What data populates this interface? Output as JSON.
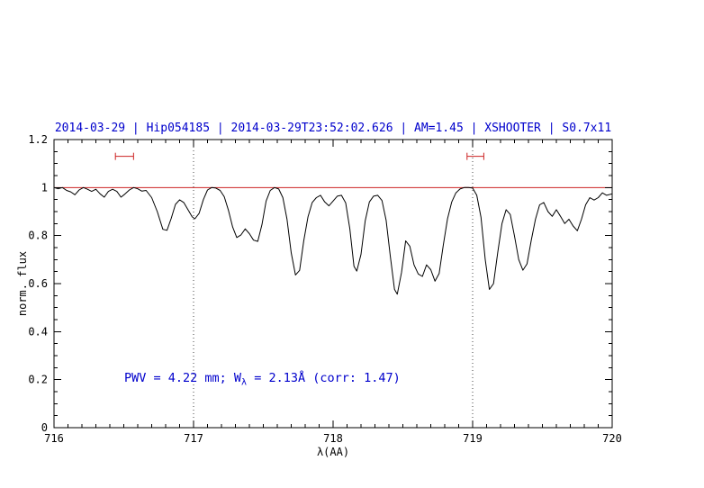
{
  "colors": {
    "title": "#0000cc",
    "annotation": "#0000cc",
    "spectrum": "#000000",
    "continuum": "#cc2222",
    "range_marker": "#cc2222",
    "frame": "#000000",
    "vline": "#444444"
  },
  "annotation": {
    "part1": "PWV = 4.22 mm; W",
    "sub": "λ",
    "part2": " = 2.13Å (corr: 1.47)"
  },
  "chart_data": {
    "type": "line",
    "title": "2014-03-29 | Hip054185 | 2014-03-29T23:52:02.626 | AM=1.45 | XSHOOTER | S0.7x11",
    "xlabel": "λ(AA)",
    "ylabel": "norm. flux",
    "xlim": [
      716,
      720
    ],
    "ylim": [
      0,
      1.2
    ],
    "xtick_values": [
      716,
      717,
      718,
      719,
      720
    ],
    "xtick_labels": [
      "716",
      "717",
      "718",
      "719",
      "720"
    ],
    "ytick_values": [
      0,
      0.2,
      0.4,
      0.6,
      0.8,
      1,
      1.2
    ],
    "ytick_labels": [
      "0",
      "0.2",
      "0.4",
      "0.6",
      "0.8",
      "1",
      "1.2"
    ],
    "x_minor_step": 0.1,
    "y_minor_step": 0.05,
    "grid": false,
    "continuum_y": 1.0,
    "vlines": [
      717,
      719
    ],
    "range_markers": [
      {
        "x1": 716.44,
        "x2": 716.57,
        "y": 1.13
      },
      {
        "x1": 718.96,
        "x2": 719.08,
        "y": 1.13
      }
    ],
    "legend": null,
    "series": [
      {
        "name": "spectrum",
        "points": [
          [
            716.0,
            1.0
          ],
          [
            716.03,
            0.995
          ],
          [
            716.06,
            1.0
          ],
          [
            716.09,
            0.988
          ],
          [
            716.12,
            0.982
          ],
          [
            716.15,
            0.97
          ],
          [
            716.18,
            0.99
          ],
          [
            716.21,
            1.0
          ],
          [
            716.24,
            0.993
          ],
          [
            716.27,
            0.984
          ],
          [
            716.3,
            0.993
          ],
          [
            716.33,
            0.974
          ],
          [
            716.36,
            0.96
          ],
          [
            716.39,
            0.984
          ],
          [
            716.42,
            0.993
          ],
          [
            716.45,
            0.984
          ],
          [
            716.48,
            0.96
          ],
          [
            716.51,
            0.974
          ],
          [
            716.54,
            0.99
          ],
          [
            716.57,
            1.0
          ],
          [
            716.6,
            0.995
          ],
          [
            716.63,
            0.985
          ],
          [
            716.66,
            0.988
          ],
          [
            716.7,
            0.958
          ],
          [
            716.74,
            0.9
          ],
          [
            716.78,
            0.826
          ],
          [
            716.81,
            0.822
          ],
          [
            716.84,
            0.872
          ],
          [
            716.87,
            0.93
          ],
          [
            716.9,
            0.949
          ],
          [
            716.93,
            0.938
          ],
          [
            716.96,
            0.908
          ],
          [
            716.99,
            0.878
          ],
          [
            717.01,
            0.87
          ],
          [
            717.04,
            0.893
          ],
          [
            717.07,
            0.95
          ],
          [
            717.1,
            0.99
          ],
          [
            717.13,
            1.0
          ],
          [
            717.16,
            0.998
          ],
          [
            717.19,
            0.988
          ],
          [
            717.22,
            0.962
          ],
          [
            717.25,
            0.905
          ],
          [
            717.28,
            0.836
          ],
          [
            717.31,
            0.792
          ],
          [
            717.34,
            0.803
          ],
          [
            717.37,
            0.828
          ],
          [
            717.4,
            0.808
          ],
          [
            717.43,
            0.781
          ],
          [
            717.46,
            0.776
          ],
          [
            717.49,
            0.846
          ],
          [
            717.52,
            0.944
          ],
          [
            717.55,
            0.988
          ],
          [
            717.58,
            1.0
          ],
          [
            717.61,
            0.994
          ],
          [
            717.64,
            0.958
          ],
          [
            717.67,
            0.868
          ],
          [
            717.7,
            0.728
          ],
          [
            717.73,
            0.636
          ],
          [
            717.76,
            0.655
          ],
          [
            717.79,
            0.778
          ],
          [
            717.82,
            0.878
          ],
          [
            717.85,
            0.938
          ],
          [
            717.88,
            0.958
          ],
          [
            717.91,
            0.968
          ],
          [
            717.94,
            0.94
          ],
          [
            717.97,
            0.924
          ],
          [
            718.0,
            0.944
          ],
          [
            718.03,
            0.964
          ],
          [
            718.06,
            0.968
          ],
          [
            718.09,
            0.936
          ],
          [
            718.12,
            0.828
          ],
          [
            718.15,
            0.672
          ],
          [
            718.17,
            0.652
          ],
          [
            718.2,
            0.722
          ],
          [
            718.23,
            0.862
          ],
          [
            718.26,
            0.94
          ],
          [
            718.29,
            0.964
          ],
          [
            718.32,
            0.968
          ],
          [
            718.35,
            0.946
          ],
          [
            718.38,
            0.864
          ],
          [
            718.41,
            0.716
          ],
          [
            718.44,
            0.576
          ],
          [
            718.46,
            0.556
          ],
          [
            718.49,
            0.646
          ],
          [
            718.52,
            0.778
          ],
          [
            718.55,
            0.756
          ],
          [
            718.58,
            0.678
          ],
          [
            718.61,
            0.64
          ],
          [
            718.64,
            0.63
          ],
          [
            718.67,
            0.678
          ],
          [
            718.7,
            0.658
          ],
          [
            718.73,
            0.61
          ],
          [
            718.76,
            0.642
          ],
          [
            718.79,
            0.76
          ],
          [
            718.82,
            0.87
          ],
          [
            718.85,
            0.94
          ],
          [
            718.88,
            0.978
          ],
          [
            718.91,
            0.994
          ],
          [
            718.94,
            1.0
          ],
          [
            718.97,
            1.0
          ],
          [
            719.0,
            0.998
          ],
          [
            719.03,
            0.968
          ],
          [
            719.06,
            0.876
          ],
          [
            719.09,
            0.7
          ],
          [
            719.12,
            0.576
          ],
          [
            719.15,
            0.6
          ],
          [
            719.18,
            0.73
          ],
          [
            719.21,
            0.85
          ],
          [
            719.24,
            0.908
          ],
          [
            719.27,
            0.888
          ],
          [
            719.3,
            0.798
          ],
          [
            719.33,
            0.7
          ],
          [
            719.36,
            0.656
          ],
          [
            719.39,
            0.682
          ],
          [
            719.42,
            0.78
          ],
          [
            719.45,
            0.868
          ],
          [
            719.48,
            0.928
          ],
          [
            719.51,
            0.938
          ],
          [
            719.54,
            0.9
          ],
          [
            719.57,
            0.88
          ],
          [
            719.6,
            0.908
          ],
          [
            719.63,
            0.88
          ],
          [
            719.66,
            0.85
          ],
          [
            719.69,
            0.868
          ],
          [
            719.72,
            0.84
          ],
          [
            719.75,
            0.82
          ],
          [
            719.78,
            0.868
          ],
          [
            719.81,
            0.928
          ],
          [
            719.84,
            0.958
          ],
          [
            719.87,
            0.948
          ],
          [
            719.9,
            0.958
          ],
          [
            719.93,
            0.978
          ],
          [
            719.96,
            0.968
          ],
          [
            720.0,
            0.974
          ]
        ]
      }
    ]
  }
}
